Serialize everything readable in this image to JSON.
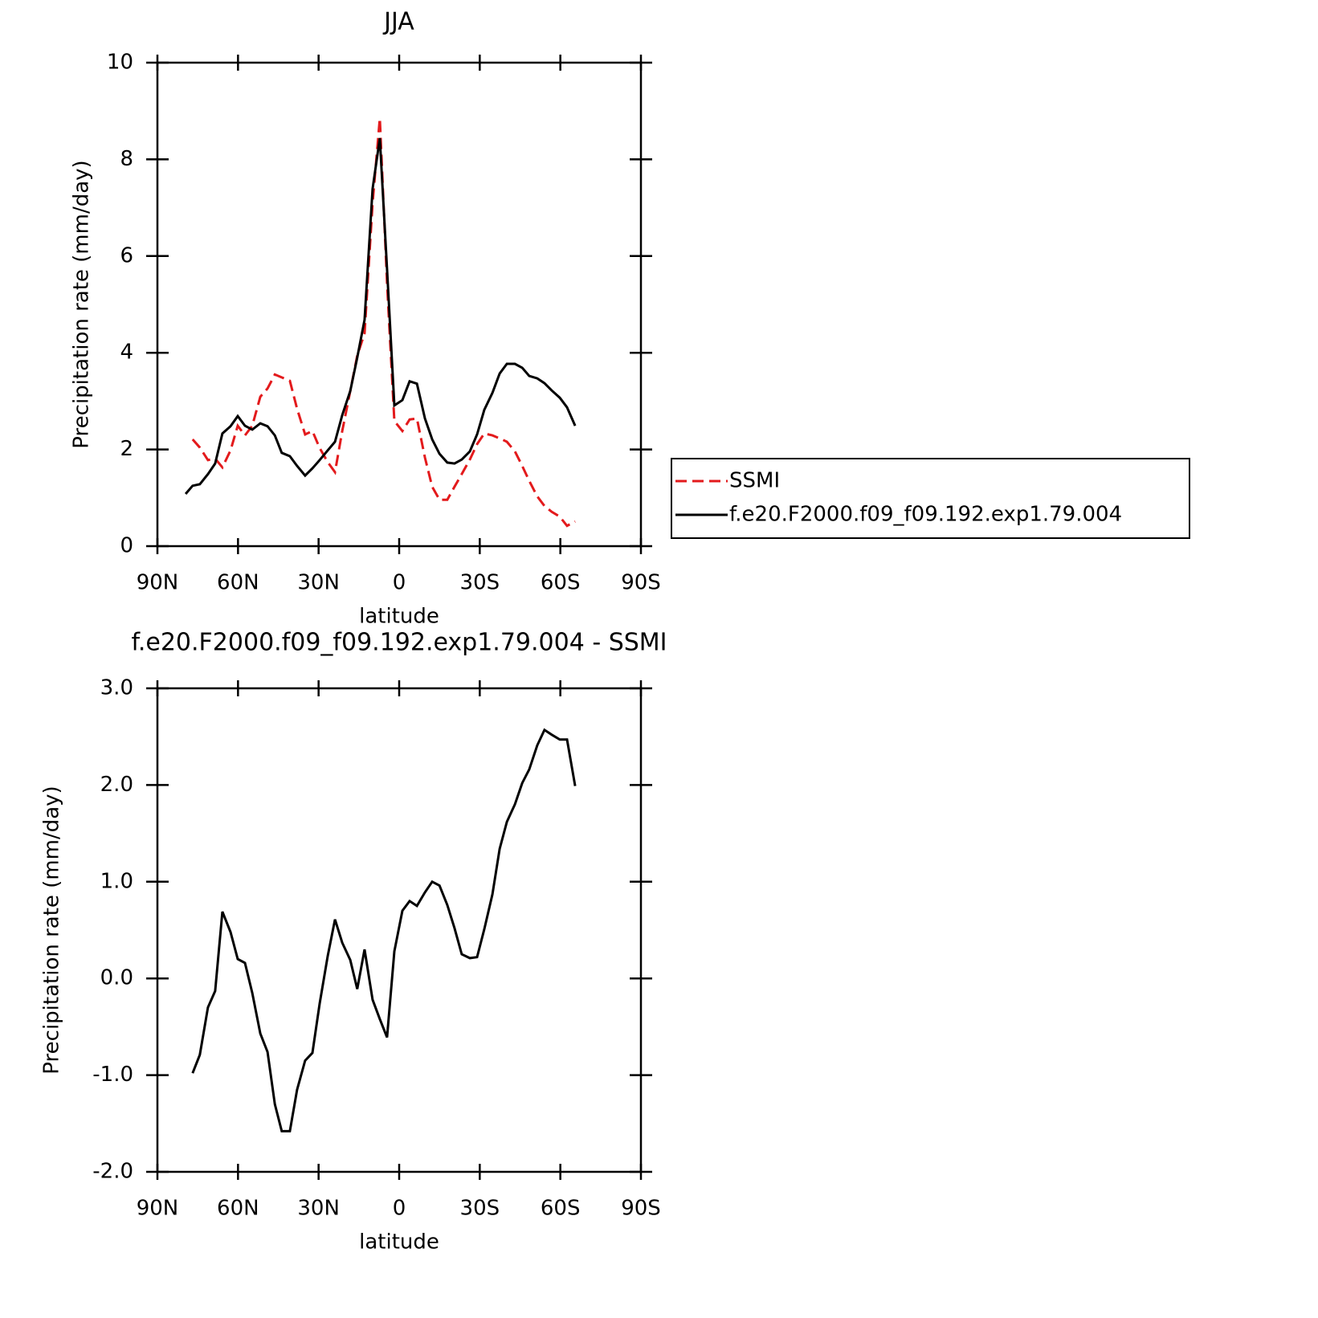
{
  "chart_data": [
    {
      "type": "line",
      "title": "JJA",
      "xlabel": "latitude",
      "ylabel": "Precipitation rate (mm/day)",
      "xlim": [
        90,
        -90
      ],
      "ylim": [
        0,
        10
      ],
      "xticks": [
        {
          "value": 90,
          "label": "90N"
        },
        {
          "value": 60,
          "label": "60N"
        },
        {
          "value": 30,
          "label": "30N"
        },
        0,
        {
          "value": -30,
          "label": "30S"
        },
        {
          "value": -60,
          "label": "60S"
        },
        {
          "value": -90,
          "label": "90S"
        }
      ],
      "yticks": [
        0,
        2,
        4,
        6,
        8,
        10
      ],
      "legend": "right",
      "x": [
        79.5,
        76.9,
        74.2,
        71.2,
        68.5,
        65.8,
        62.8,
        60.1,
        57.4,
        54.7,
        51.7,
        49.0,
        46.3,
        43.7,
        40.7,
        38.0,
        35.0,
        32.3,
        29.6,
        26.6,
        23.9,
        21.2,
        18.2,
        15.6,
        12.9,
        9.9,
        7.2,
        4.5,
        1.8,
        -1.2,
        -3.9,
        -6.6,
        -9.6,
        -12.3,
        -15.0,
        -17.9,
        -20.6,
        -23.3,
        -26.3,
        -29.0,
        -31.7,
        -34.7,
        -37.4,
        -40.1,
        -43.1,
        -45.8,
        -48.4,
        -51.4,
        -54.1,
        -56.8,
        -59.8,
        -62.5,
        -65.5
      ],
      "series": [
        {
          "name": "SSMI",
          "color": "#e31a1c",
          "linestyle": "dashed",
          "values": [
            null,
            2.21,
            2.04,
            1.78,
            1.81,
            1.63,
            1.98,
            2.49,
            2.29,
            2.49,
            3.09,
            3.26,
            3.55,
            3.49,
            3.42,
            2.84,
            2.31,
            2.38,
            2.03,
            1.74,
            1.53,
            2.38,
            3.21,
            3.94,
            4.4,
            7.09,
            8.85,
            5.43,
            2.59,
            2.38,
            2.62,
            2.64,
            1.83,
            1.23,
            0.96,
            0.96,
            1.23,
            1.49,
            1.79,
            2.11,
            2.33,
            2.29,
            2.23,
            2.16,
            1.96,
            1.66,
            1.35,
            1.03,
            0.83,
            0.71,
            0.61,
            0.42,
            0.51
          ]
        },
        {
          "name": "f.e20.F2000.f09_f09.192.exp1.79.004",
          "color": "#000000",
          "linestyle": "solid",
          "values": [
            1.08,
            1.25,
            1.28,
            1.49,
            1.71,
            2.33,
            2.48,
            2.69,
            2.49,
            2.41,
            2.54,
            2.48,
            2.29,
            1.93,
            1.86,
            1.66,
            1.46,
            1.61,
            1.78,
            1.98,
            2.16,
            2.71,
            3.21,
            3.9,
            4.68,
            7.39,
            8.44,
            5.73,
            2.91,
            3.02,
            3.41,
            3.36,
            2.64,
            2.21,
            1.91,
            1.73,
            1.71,
            1.79,
            1.96,
            2.31,
            2.82,
            3.17,
            3.57,
            3.77,
            3.77,
            3.69,
            3.52,
            3.47,
            3.37,
            3.22,
            3.07,
            2.87,
            2.49
          ]
        }
      ]
    },
    {
      "type": "line",
      "title": "f.e20.F2000.f09_f09.192.exp1.79.004 - SSMI",
      "xlabel": "latitude",
      "ylabel": "Precipitation rate (mm/day)",
      "xlim": [
        90,
        -90
      ],
      "ylim": [
        -2,
        3
      ],
      "xticks": [
        {
          "value": 90,
          "label": "90N"
        },
        {
          "value": 60,
          "label": "60N"
        },
        {
          "value": 30,
          "label": "30N"
        },
        0,
        {
          "value": -30,
          "label": "30S"
        },
        {
          "value": -60,
          "label": "60S"
        },
        {
          "value": -90,
          "label": "90S"
        }
      ],
      "yticks": [
        {
          "value": -2,
          "label": "-2.0"
        },
        {
          "value": -1,
          "label": "-1.0"
        },
        {
          "value": 0,
          "label": "0.0"
        },
        {
          "value": 1,
          "label": "1.0"
        },
        {
          "value": 2,
          "label": "2.0"
        },
        {
          "value": 3,
          "label": "3.0"
        }
      ],
      "x": [
        76.9,
        74.2,
        71.2,
        68.5,
        65.8,
        62.8,
        60.1,
        57.4,
        54.7,
        51.7,
        49.0,
        46.3,
        43.7,
        40.7,
        38.0,
        35.0,
        32.3,
        29.6,
        26.6,
        23.9,
        21.2,
        18.2,
        15.6,
        12.9,
        9.9,
        7.2,
        4.5,
        1.8,
        -1.2,
        -3.9,
        -6.6,
        -9.6,
        -12.3,
        -15.0,
        -17.9,
        -20.6,
        -23.3,
        -26.3,
        -29.0,
        -31.7,
        -34.7,
        -37.4,
        -40.1,
        -43.1,
        -45.8,
        -48.4,
        -51.4,
        -54.1,
        -56.8,
        -59.8,
        -62.5,
        -65.5
      ],
      "series": [
        {
          "color": "#000000",
          "linestyle": "solid",
          "values": [
            -0.98,
            -0.79,
            -0.3,
            -0.13,
            0.69,
            0.48,
            0.2,
            0.16,
            -0.15,
            -0.57,
            -0.76,
            -1.3,
            -1.58,
            -1.58,
            -1.15,
            -0.85,
            -0.77,
            -0.26,
            0.23,
            0.61,
            0.37,
            0.19,
            -0.11,
            0.3,
            -0.22,
            -0.42,
            -0.61,
            0.28,
            0.7,
            0.8,
            0.75,
            0.89,
            1.0,
            0.96,
            0.76,
            0.52,
            0.25,
            0.21,
            0.22,
            0.51,
            0.87,
            1.34,
            1.62,
            1.8,
            2.02,
            2.16,
            2.41,
            2.57,
            2.52,
            2.47,
            2.47,
            1.99
          ]
        }
      ]
    }
  ]
}
